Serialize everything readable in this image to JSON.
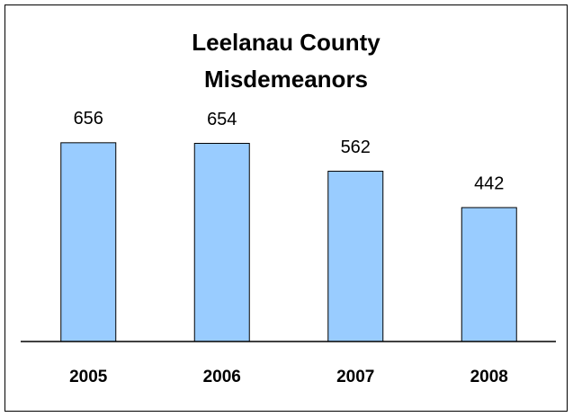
{
  "chart_data": {
    "type": "bar",
    "title": [
      "Leelanau County",
      "Misdemeanors"
    ],
    "categories": [
      "2005",
      "2006",
      "2007",
      "2008"
    ],
    "values": [
      656,
      654,
      562,
      442
    ],
    "color": "#99ccff",
    "ylim": [
      0,
      700
    ]
  }
}
